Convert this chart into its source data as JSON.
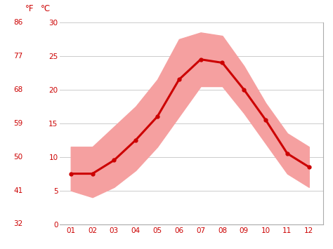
{
  "months": [
    1,
    2,
    3,
    4,
    5,
    6,
    7,
    8,
    9,
    10,
    11,
    12
  ],
  "month_labels": [
    "01",
    "02",
    "03",
    "04",
    "05",
    "06",
    "07",
    "08",
    "09",
    "10",
    "11",
    "12"
  ],
  "mean_temp_c": [
    7.5,
    7.5,
    9.5,
    12.5,
    16.0,
    21.5,
    24.5,
    24.0,
    20.0,
    15.5,
    10.5,
    8.5
  ],
  "high_temp_c": [
    11.5,
    11.5,
    14.5,
    17.5,
    21.5,
    27.5,
    28.5,
    28.0,
    23.5,
    18.0,
    13.5,
    11.5
  ],
  "low_temp_c": [
    5.0,
    4.0,
    5.5,
    8.0,
    11.5,
    16.0,
    20.5,
    20.5,
    16.5,
    12.0,
    7.5,
    5.5
  ],
  "ylim_c": [
    0,
    30
  ],
  "yticks_c": [
    0,
    5,
    10,
    15,
    20,
    25,
    30
  ],
  "yticks_f": [
    32,
    41,
    50,
    59,
    68,
    77,
    86
  ],
  "line_color": "#cc0000",
  "band_color": "#f5a0a0",
  "grid_color": "#cccccc",
  "spine_color": "#aaaaaa",
  "label_color": "#cc0000",
  "background_color": "#ffffff",
  "line_width": 2.2,
  "marker_size": 3.5,
  "marker_style": "o",
  "tick_fontsize": 7.5,
  "header_fontsize": 8.5
}
